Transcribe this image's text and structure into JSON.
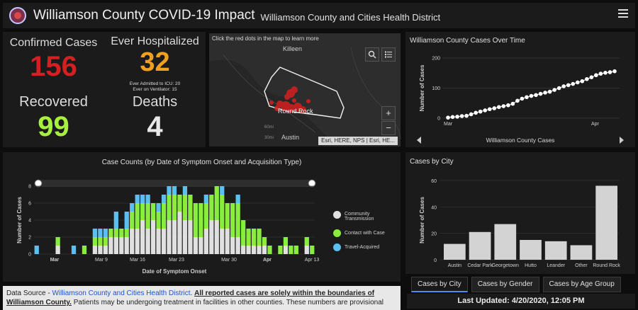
{
  "header": {
    "title": "Williamson County COVID-19 Impact",
    "subtitle": "Williamson County and Cities Health District"
  },
  "stats": {
    "confirmed_label": "Confirmed Cases",
    "confirmed_value": "156",
    "hospitalized_label": "Ever Hospitalized",
    "hospitalized_value": "32",
    "icu_note": "Ever Admitted to ICU: 20",
    "ventilator_note": "Ever on Ventilator: 15",
    "recovered_label": "Recovered",
    "recovered_value": "99",
    "deaths_label": "Deaths",
    "deaths_value": "4"
  },
  "map": {
    "caption": "Click the red dots in the map to learn more",
    "place_killeen": "Killeen",
    "place_round_rock": "Round Rock",
    "place_austin": "Austin",
    "scale_60mi": "60mi",
    "scale_30mi": "30mi",
    "attribution": "Esri, HERE, NPS | Esri, HE...",
    "zoom_in": "+",
    "zoom_out": "−"
  },
  "colors": {
    "confirmed": "#d42020",
    "hospitalized": "#f0a020",
    "recovered": "#a8f040",
    "deaths": "#e8e8e8",
    "community": "#e0e0e0",
    "contact": "#8aec3c",
    "travel": "#5ac0f0",
    "city_bar": "#d3d3d3"
  },
  "cases_over_time": {
    "title": "Williamson County Cases Over Time",
    "nav_label": "Williamson County Cases"
  },
  "case_counts": {
    "title": "Case Counts (by Date of Symptom Onset and Acquisition Type)",
    "legend": [
      "Community Transmission",
      "Contact with Case",
      "Travel-Acquired"
    ]
  },
  "cases_by_city": {
    "title": "Cases by City"
  },
  "tabs": [
    "Cases by City",
    "Cases by Gender",
    "Cases by Age Group"
  ],
  "footer": {
    "source_prefix": "Data Source - ",
    "source_link": "Williamson County and Cities Health District",
    "bold_note": "All reported cases are solely within the boundaries of Williamson County.",
    "rest_note": " Patients may be undergoing treatment in facilities in other counties. These numbers are provisional",
    "last_updated": "Last Updated: 4/20/2020, 12:05 PM"
  },
  "chart_data": [
    {
      "type": "line",
      "title": "",
      "ylabel": "Number of Cases",
      "ylim": [
        0,
        200
      ],
      "yticks": [
        0,
        100,
        200
      ],
      "xticks": [
        "Mar",
        "Apr"
      ],
      "values": [
        2,
        4,
        5,
        7,
        8,
        13,
        18,
        22,
        26,
        30,
        33,
        37,
        40,
        43,
        48,
        58,
        65,
        70,
        74,
        77,
        81,
        85,
        88,
        94,
        100,
        106,
        110,
        114,
        119,
        123,
        130,
        136,
        143,
        148,
        151,
        153,
        156
      ]
    },
    {
      "type": "bar",
      "title": "Case Counts (by Date of Symptom Onset and Acquisition Type)",
      "xlabel": "Date of Symptom Onset",
      "ylabel": "Number of Cases",
      "ylim": [
        0,
        8
      ],
      "yticks": [
        0,
        2,
        4,
        6,
        8
      ],
      "xticks": [
        "Mar",
        "Mar 9",
        "Mar 16",
        "Mar 23",
        "Mar 30",
        "Apr",
        "Apr 13"
      ],
      "series": [
        {
          "name": "Community Transmission",
          "values": [
            0,
            0,
            0,
            0,
            1,
            0,
            0,
            0,
            0,
            0,
            0,
            1,
            1,
            1,
            2,
            2,
            2,
            2,
            3,
            3,
            4,
            3,
            4,
            3,
            3,
            4,
            4,
            5,
            4,
            4,
            2,
            2,
            3,
            4,
            4,
            3,
            3,
            2,
            2,
            1,
            1,
            1,
            1,
            1,
            0,
            0,
            0,
            1,
            0,
            0,
            0,
            1,
            0
          ]
        },
        {
          "name": "Contact with Case",
          "values": [
            0,
            0,
            0,
            0,
            1,
            0,
            0,
            0,
            0,
            1,
            0,
            1,
            1,
            1,
            1,
            1,
            1,
            1,
            2,
            3,
            2,
            3,
            2,
            2,
            3,
            3,
            3,
            2,
            3,
            3,
            4,
            4,
            3,
            3,
            4,
            4,
            3,
            4,
            4,
            3,
            2,
            2,
            2,
            1,
            1,
            0,
            1,
            1,
            1,
            1,
            0,
            1,
            1
          ]
        },
        {
          "name": "Travel-Acquired",
          "values": [
            1,
            0,
            0,
            0,
            0,
            0,
            0,
            1,
            0,
            0,
            0,
            1,
            1,
            1,
            0,
            2,
            0,
            2,
            1,
            1,
            1,
            1,
            0,
            1,
            1,
            1,
            1,
            0,
            1,
            0,
            0,
            0,
            1,
            0,
            0,
            1,
            0,
            0,
            1,
            0,
            0,
            0,
            0,
            0,
            0,
            0,
            0,
            0,
            0,
            0,
            0,
            0,
            0
          ]
        }
      ]
    },
    {
      "type": "bar",
      "title": "Cases by City",
      "ylabel": "Number of Cases",
      "ylim": [
        0,
        60
      ],
      "yticks": [
        0,
        20,
        40,
        60
      ],
      "categories": [
        "Austin",
        "Cedar Park",
        "Georgetown",
        "Hutto",
        "Leander",
        "Other",
        "Round Rock"
      ],
      "values": [
        12,
        21,
        27,
        15,
        14,
        11,
        56
      ]
    }
  ]
}
